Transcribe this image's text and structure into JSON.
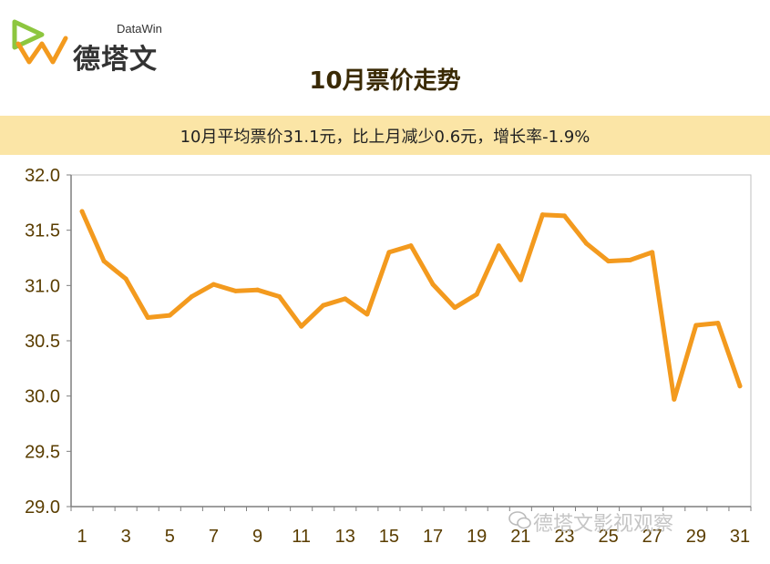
{
  "brand": {
    "logo_en": "DataWin",
    "logo_cn": "德塔文"
  },
  "title": "10月票价走势",
  "subtitle": "10月平均票价31.1元，比上月减少0.6元，增长率-1.9%",
  "watermark": "德塔文影视观察",
  "colors": {
    "line": "#f39a1e",
    "band": "#fbe5a6",
    "axis_text": "#5a3d00"
  },
  "chart_data": {
    "type": "line",
    "title": "10月票价走势",
    "xlabel": "",
    "ylabel": "",
    "ylim": [
      29.0,
      32.0
    ],
    "yticks": [
      "29.0",
      "29.5",
      "30.0",
      "30.5",
      "31.0",
      "31.5",
      "32.0"
    ],
    "xtick_labels": [
      "1",
      "3",
      "5",
      "7",
      "9",
      "11",
      "13",
      "15",
      "17",
      "19",
      "21",
      "23",
      "25",
      "27",
      "29",
      "31"
    ],
    "x": [
      1,
      2,
      3,
      4,
      5,
      6,
      7,
      8,
      9,
      10,
      11,
      12,
      13,
      14,
      15,
      16,
      17,
      18,
      19,
      20,
      21,
      22,
      23,
      24,
      25,
      26,
      27,
      28,
      29,
      30,
      31
    ],
    "series": [
      {
        "values": [
          31.67,
          31.22,
          31.06,
          30.71,
          30.73,
          30.9,
          31.01,
          30.95,
          30.96,
          30.9,
          30.63,
          30.82,
          30.88,
          30.74,
          31.3,
          31.36,
          31.01,
          30.8,
          30.92,
          31.36,
          31.05,
          31.64,
          31.63,
          31.38,
          31.22,
          31.23,
          31.3,
          29.97,
          30.64,
          30.66,
          30.09
        ]
      }
    ],
    "grid": false,
    "legend": "none"
  }
}
